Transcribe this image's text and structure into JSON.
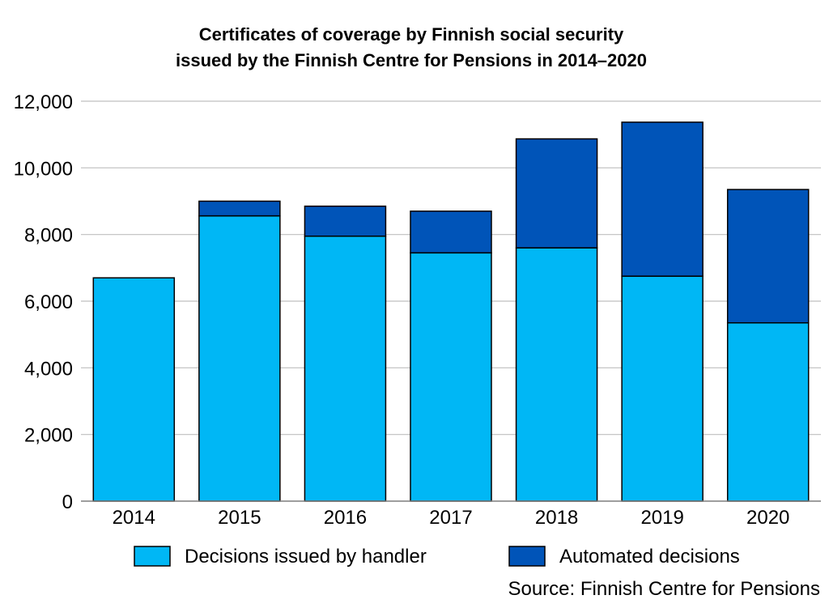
{
  "chart_data": {
    "type": "bar",
    "stacked": true,
    "title_lines": [
      "Certificates of coverage by Finnish social security",
      "issued by the Finnish Centre for Pensions in 2014–2020"
    ],
    "categories": [
      "2014",
      "2015",
      "2016",
      "2017",
      "2018",
      "2019",
      "2020"
    ],
    "series": [
      {
        "name": "Decisions issued by handler",
        "color": "#00b7f5",
        "values": [
          6700,
          8560,
          7950,
          7450,
          7600,
          6750,
          5350
        ]
      },
      {
        "name": "Automated decisions",
        "color": "#0054b8",
        "values": [
          0,
          440,
          900,
          1250,
          3270,
          4620,
          4000
        ]
      }
    ],
    "yticks": [
      0,
      2000,
      4000,
      6000,
      8000,
      10000,
      12000
    ],
    "ytick_labels": [
      "0",
      "2,000",
      "4,000",
      "6,000",
      "8,000",
      "10,000",
      "12,000"
    ],
    "ylim": [
      0,
      12000
    ],
    "xlabel": "",
    "ylabel": "",
    "grid": true,
    "legend_position": "bottom",
    "source": "Source: Finnish Centre for Pensions"
  }
}
